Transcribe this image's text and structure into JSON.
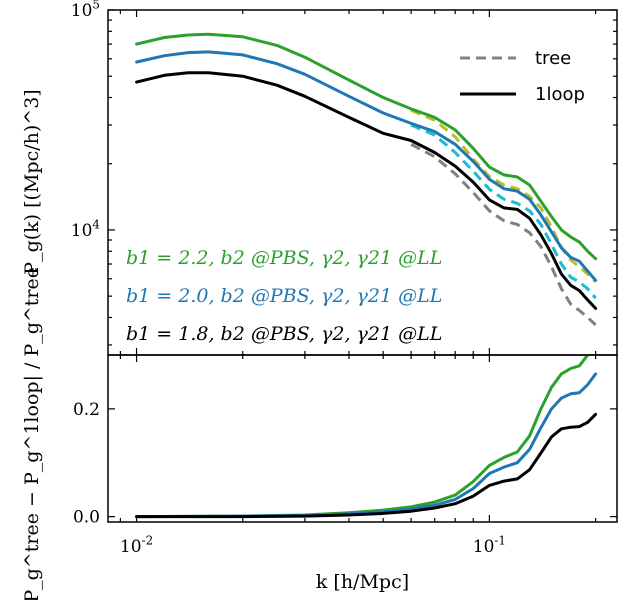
{
  "figure": {
    "top_ylabel": "P_g(k)  [(Mpc/h)^3]",
    "bottom_ylabel": "|P_g^tree − P_g^1loop| / P_g^tree",
    "xlabel": "k  [h/Mpc]"
  },
  "chart_data": [
    {
      "type": "line",
      "panel": "top",
      "x_scale": "log",
      "y_scale": "log",
      "xlim": [
        0.0083,
        0.23
      ],
      "ylim": [
        2700,
        100000
      ],
      "x_ticks": [
        {
          "value": 0.01,
          "label": "10^-2"
        },
        {
          "value": 0.1,
          "label": "10^-1"
        }
      ],
      "y_ticks": [
        {
          "value": 10000,
          "label": "10^4"
        },
        {
          "value": 100000,
          "label": "10^5"
        }
      ],
      "grid": false,
      "legend": {
        "position": "top-right",
        "entries": [
          {
            "label": "tree",
            "style": "dashed",
            "color": "#808080"
          },
          {
            "label": "1loop",
            "style": "solid",
            "color": "#000000"
          }
        ]
      },
      "annotations": [
        {
          "text": "b1 = 2.2,  b2 @PBS,  γ2,  γ21 @LL",
          "color": "#2ca02c"
        },
        {
          "text": "b1 = 2.0,  b2 @PBS,  γ2,  γ21 @LL",
          "color": "#1f77b4"
        },
        {
          "text": "b1 = 1.8,  b2 @PBS,  γ2,  γ21 @LL",
          "color": "#000000"
        }
      ],
      "series": [
        {
          "bias": "b1 = 2.2",
          "model": "1loop",
          "color": "#2ca02c",
          "style": "solid",
          "x": [
            0.01,
            0.012,
            0.014,
            0.016,
            0.02,
            0.025,
            0.03,
            0.04,
            0.05,
            0.06,
            0.07,
            0.08,
            0.09,
            0.1,
            0.11,
            0.12,
            0.13,
            0.14,
            0.15,
            0.16,
            0.17,
            0.18,
            0.19,
            0.2
          ],
          "y": [
            70000,
            75000,
            77000,
            77500,
            75500,
            69000,
            61000,
            48000,
            40000,
            35500,
            32500,
            28500,
            23500,
            19300,
            17800,
            17400,
            16000,
            13500,
            11500,
            10000,
            9300,
            8800,
            8000,
            7400
          ]
        },
        {
          "bias": "b1 = 2.2",
          "model": "tree",
          "color": "#bcbd22",
          "style": "dashed",
          "x": [
            0.06,
            0.07,
            0.08,
            0.09,
            0.1,
            0.11,
            0.12,
            0.13,
            0.14,
            0.15,
            0.16,
            0.17,
            0.18,
            0.19,
            0.2
          ],
          "y": [
            35000,
            31500,
            26500,
            21000,
            17500,
            16000,
            15400,
            14200,
            12600,
            10300,
            8300,
            7300,
            6800,
            6300,
            5800
          ]
        },
        {
          "bias": "b1 = 2.0",
          "model": "1loop",
          "color": "#1f77b4",
          "style": "solid",
          "x": [
            0.01,
            0.012,
            0.014,
            0.016,
            0.02,
            0.025,
            0.03,
            0.04,
            0.05,
            0.06,
            0.07,
            0.08,
            0.09,
            0.1,
            0.11,
            0.12,
            0.13,
            0.14,
            0.15,
            0.16,
            0.17,
            0.18,
            0.19,
            0.2
          ],
          "y": [
            58000,
            62000,
            64000,
            64500,
            62500,
            57000,
            51000,
            40500,
            34000,
            30500,
            28000,
            24500,
            20500,
            17000,
            15400,
            15000,
            13800,
            11700,
            9800,
            8300,
            7500,
            7200,
            6500,
            5900
          ]
        },
        {
          "bias": "b1 = 2.0",
          "model": "tree",
          "color": "#17becf",
          "style": "dashed",
          "x": [
            0.06,
            0.07,
            0.08,
            0.09,
            0.1,
            0.11,
            0.12,
            0.13,
            0.14,
            0.15,
            0.16,
            0.17,
            0.18,
            0.19,
            0.2
          ],
          "y": [
            30000,
            27000,
            22500,
            18500,
            15300,
            13800,
            13200,
            12200,
            10600,
            8600,
            7000,
            6100,
            5800,
            5400,
            4900
          ]
        },
        {
          "bias": "b1 = 1.8",
          "model": "1loop",
          "color": "#000000",
          "style": "solid",
          "x": [
            0.01,
            0.012,
            0.014,
            0.016,
            0.02,
            0.025,
            0.03,
            0.04,
            0.05,
            0.06,
            0.07,
            0.08,
            0.09,
            0.1,
            0.11,
            0.12,
            0.13,
            0.14,
            0.15,
            0.16,
            0.17,
            0.18,
            0.19,
            0.2
          ],
          "y": [
            47000,
            50500,
            51800,
            51800,
            50000,
            45500,
            40500,
            32500,
            27500,
            25500,
            22500,
            19500,
            16500,
            13700,
            12600,
            12400,
            11300,
            9500,
            7800,
            6300,
            5600,
            5300,
            4800,
            4400
          ]
        },
        {
          "bias": "b1 = 1.8",
          "model": "tree",
          "color": "#808080",
          "style": "dashed",
          "x": [
            0.06,
            0.07,
            0.08,
            0.09,
            0.1,
            0.11,
            0.12,
            0.13,
            0.14,
            0.15,
            0.16,
            0.17,
            0.18,
            0.19,
            0.2
          ],
          "y": [
            24500,
            21500,
            18000,
            14800,
            12200,
            11000,
            10600,
            9700,
            8400,
            6800,
            5400,
            4600,
            4300,
            4000,
            3700
          ]
        }
      ]
    },
    {
      "type": "line",
      "panel": "bottom",
      "x_scale": "log",
      "y_scale": "linear",
      "xlim": [
        0.0083,
        0.23
      ],
      "ylim": [
        -0.01,
        0.3
      ],
      "x_ticks": [
        {
          "value": 0.01,
          "label": "10^-2"
        },
        {
          "value": 0.1,
          "label": "10^-1"
        }
      ],
      "y_ticks": [
        {
          "value": 0.0,
          "label": "0.0"
        },
        {
          "value": 0.2,
          "label": "0.2"
        }
      ],
      "grid": false,
      "series": [
        {
          "bias": "b1 = 2.2",
          "color": "#2ca02c",
          "x": [
            0.01,
            0.02,
            0.03,
            0.04,
            0.05,
            0.06,
            0.07,
            0.08,
            0.09,
            0.1,
            0.11,
            0.12,
            0.13,
            0.14,
            0.15,
            0.16,
            0.17,
            0.18,
            0.19,
            0.2
          ],
          "y": [
            0.0,
            0.001,
            0.003,
            0.007,
            0.012,
            0.018,
            0.027,
            0.04,
            0.065,
            0.095,
            0.11,
            0.12,
            0.15,
            0.2,
            0.24,
            0.265,
            0.275,
            0.28,
            0.3,
            0.32
          ]
        },
        {
          "bias": "b1 = 2.0",
          "color": "#1f77b4",
          "x": [
            0.01,
            0.02,
            0.03,
            0.04,
            0.05,
            0.06,
            0.07,
            0.08,
            0.09,
            0.1,
            0.11,
            0.12,
            0.13,
            0.14,
            0.15,
            0.16,
            0.17,
            0.18,
            0.19,
            0.2
          ],
          "y": [
            0.0,
            0.001,
            0.002,
            0.005,
            0.009,
            0.014,
            0.021,
            0.032,
            0.052,
            0.08,
            0.092,
            0.1,
            0.125,
            0.165,
            0.2,
            0.22,
            0.228,
            0.23,
            0.245,
            0.265
          ]
        },
        {
          "bias": "b1 = 1.8",
          "color": "#000000",
          "x": [
            0.01,
            0.02,
            0.03,
            0.04,
            0.05,
            0.06,
            0.07,
            0.08,
            0.09,
            0.1,
            0.11,
            0.12,
            0.13,
            0.14,
            0.15,
            0.16,
            0.17,
            0.18,
            0.19,
            0.2
          ],
          "y": [
            0.0,
            0.0,
            0.001,
            0.003,
            0.006,
            0.01,
            0.016,
            0.024,
            0.038,
            0.058,
            0.066,
            0.07,
            0.087,
            0.118,
            0.148,
            0.163,
            0.166,
            0.167,
            0.175,
            0.19
          ]
        }
      ]
    }
  ]
}
